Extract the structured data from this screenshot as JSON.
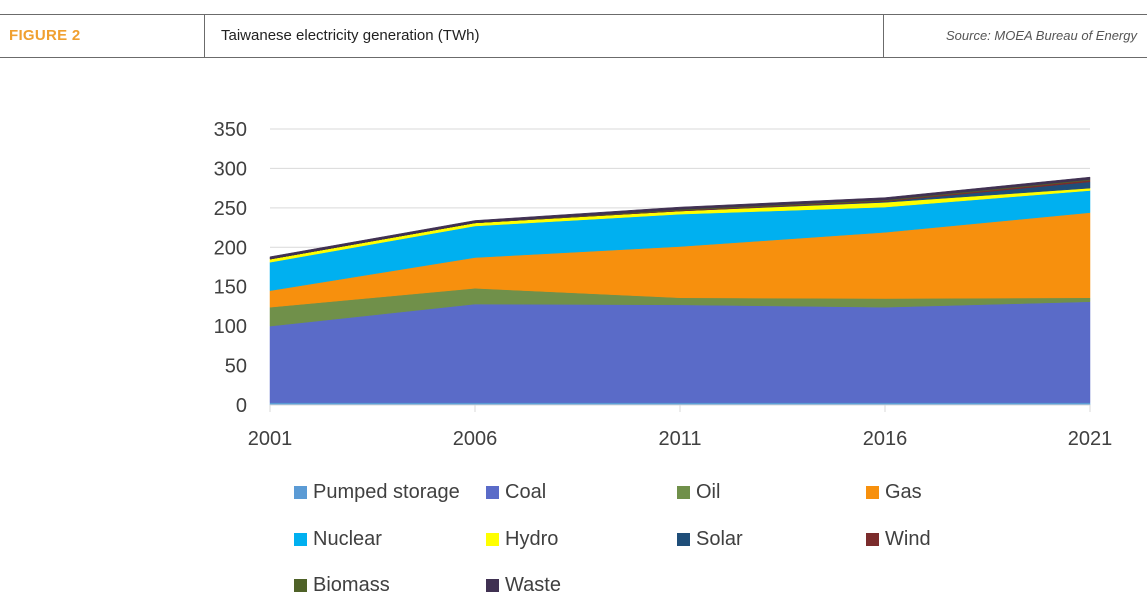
{
  "header": {
    "figure_label": "FIGURE 2",
    "title": "Taiwanese electricity generation (TWh)",
    "source": "Source: MOEA Bureau of Energy"
  },
  "colors": {
    "accent": "#f0a030"
  },
  "chart_data": {
    "type": "area",
    "stacked": true,
    "title": "Taiwanese electricity generation (TWh)",
    "xlabel": "",
    "ylabel": "",
    "x": [
      "2001",
      "2006",
      "2011",
      "2016",
      "2021"
    ],
    "ylim": [
      0,
      350
    ],
    "yticks": [
      "0",
      "50",
      "100",
      "150",
      "200",
      "250",
      "300",
      "350"
    ],
    "grid": true,
    "legend_position": "bottom",
    "series": [
      {
        "name": "Pumped storage",
        "color": "#5b9bd5",
        "values": [
          3,
          3,
          3,
          3,
          3
        ]
      },
      {
        "name": "Coal",
        "color": "#5a6bc8",
        "values": [
          97,
          125,
          124,
          121,
          128
        ]
      },
      {
        "name": "Oil",
        "color": "#70904a",
        "values": [
          24,
          20,
          9,
          11,
          5
        ]
      },
      {
        "name": "Gas",
        "color": "#f7900d",
        "values": [
          21,
          39,
          65,
          84,
          108
        ]
      },
      {
        "name": "Nuclear",
        "color": "#00b0f0",
        "values": [
          36,
          40,
          41,
          32,
          28
        ]
      },
      {
        "name": "Hydro",
        "color": "#ffff00",
        "values": [
          4,
          4,
          4,
          6,
          3
        ]
      },
      {
        "name": "Solar",
        "color": "#1f4e79",
        "values": [
          0,
          0,
          0,
          1,
          8
        ]
      },
      {
        "name": "Wind",
        "color": "#7b2c2c",
        "values": [
          0,
          0,
          1,
          1,
          2
        ]
      },
      {
        "name": "Biomass",
        "color": "#4f6228",
        "values": [
          0,
          0,
          1,
          1,
          1
        ]
      },
      {
        "name": "Waste",
        "color": "#403152",
        "values": [
          3,
          3,
          3,
          3,
          3
        ]
      }
    ]
  }
}
